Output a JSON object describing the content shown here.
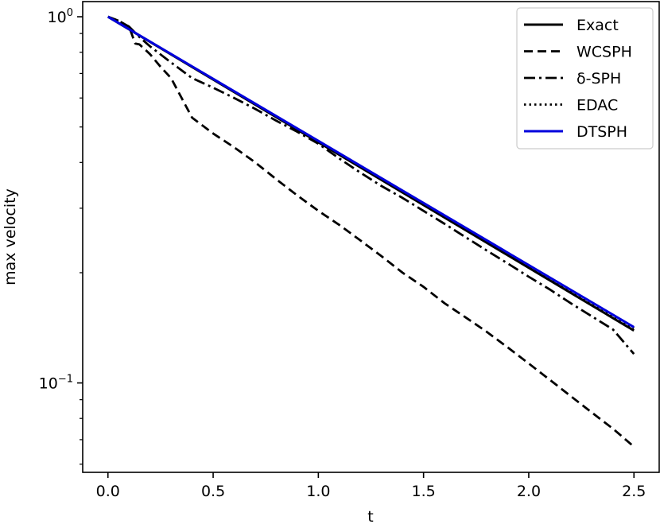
{
  "chart_data": {
    "type": "line",
    "title": "",
    "xlabel": "t",
    "ylabel": "max velocity",
    "xlim": [
      -0.12,
      2.62
    ],
    "ylim": [
      0.057,
      1.1
    ],
    "yscale": "log",
    "grid": false,
    "legend_position": "top-right",
    "x_ticks": [
      0.0,
      0.5,
      1.0,
      1.5,
      2.0,
      2.5
    ],
    "x_tick_labels": [
      "0.0",
      "0.5",
      "1.0",
      "1.5",
      "2.0",
      "2.5"
    ],
    "y_major_ticks": [
      {
        "value": 1,
        "base": "10",
        "exponent": "0"
      },
      {
        "value": 0.1,
        "base": "10",
        "exponent": "−1"
      }
    ],
    "y_minor_ticks": [
      0.06,
      0.07,
      0.08,
      0.09,
      0.2,
      0.3,
      0.4,
      0.5,
      0.6,
      0.7,
      0.8,
      0.9
    ],
    "series": [
      {
        "name": "Exact",
        "color": "#000000",
        "dash": "solid",
        "points": [
          [
            0,
            1.0
          ],
          [
            2.5,
            0.139
          ]
        ]
      },
      {
        "name": "WCSPH",
        "color": "#000000",
        "dash": "dashed",
        "points": [
          [
            0,
            1.0
          ],
          [
            0.05,
            0.975
          ],
          [
            0.1,
            0.94
          ],
          [
            0.13,
            0.845
          ],
          [
            0.15,
            0.84
          ],
          [
            0.18,
            0.81
          ],
          [
            0.2,
            0.79
          ],
          [
            0.25,
            0.73
          ],
          [
            0.3,
            0.68
          ],
          [
            0.35,
            0.6
          ],
          [
            0.4,
            0.53
          ],
          [
            0.5,
            0.48
          ],
          [
            0.6,
            0.44
          ],
          [
            0.7,
            0.4
          ],
          [
            0.8,
            0.36
          ],
          [
            0.9,
            0.325
          ],
          [
            1.0,
            0.295
          ],
          [
            1.1,
            0.27
          ],
          [
            1.2,
            0.245
          ],
          [
            1.3,
            0.222
          ],
          [
            1.4,
            0.2
          ],
          [
            1.5,
            0.183
          ],
          [
            1.6,
            0.165
          ],
          [
            1.7,
            0.151
          ],
          [
            1.8,
            0.138
          ],
          [
            1.9,
            0.125
          ],
          [
            2.0,
            0.113
          ],
          [
            2.1,
            0.102
          ],
          [
            2.2,
            0.092
          ],
          [
            2.3,
            0.083
          ],
          [
            2.4,
            0.075
          ],
          [
            2.5,
            0.067
          ]
        ]
      },
      {
        "name": "δ-SPH",
        "color": "#000000",
        "dash": "dashdot",
        "points": [
          [
            0,
            1.0
          ],
          [
            0.05,
            0.975
          ],
          [
            0.1,
            0.94
          ],
          [
            0.15,
            0.88
          ],
          [
            0.2,
            0.83
          ],
          [
            0.3,
            0.75
          ],
          [
            0.4,
            0.68
          ],
          [
            0.5,
            0.64
          ],
          [
            0.6,
            0.6
          ],
          [
            0.7,
            0.56
          ],
          [
            0.8,
            0.52
          ],
          [
            0.9,
            0.485
          ],
          [
            1.0,
            0.45
          ],
          [
            1.1,
            0.41
          ],
          [
            1.2,
            0.375
          ],
          [
            1.3,
            0.345
          ],
          [
            1.4,
            0.32
          ],
          [
            1.5,
            0.295
          ],
          [
            1.6,
            0.272
          ],
          [
            1.7,
            0.25
          ],
          [
            1.8,
            0.23
          ],
          [
            1.9,
            0.212
          ],
          [
            2.0,
            0.195
          ],
          [
            2.1,
            0.18
          ],
          [
            2.2,
            0.165
          ],
          [
            2.3,
            0.152
          ],
          [
            2.4,
            0.14
          ],
          [
            2.5,
            0.12
          ]
        ]
      },
      {
        "name": "EDAC",
        "color": "#000000",
        "dash": "dotted",
        "points": [
          [
            0,
            1.0
          ],
          [
            2.5,
            0.141
          ]
        ]
      },
      {
        "name": "DTSPH",
        "color": "#0000dd",
        "dash": "solid",
        "points": [
          [
            0,
            1.0
          ],
          [
            2.5,
            0.142
          ]
        ]
      }
    ]
  }
}
